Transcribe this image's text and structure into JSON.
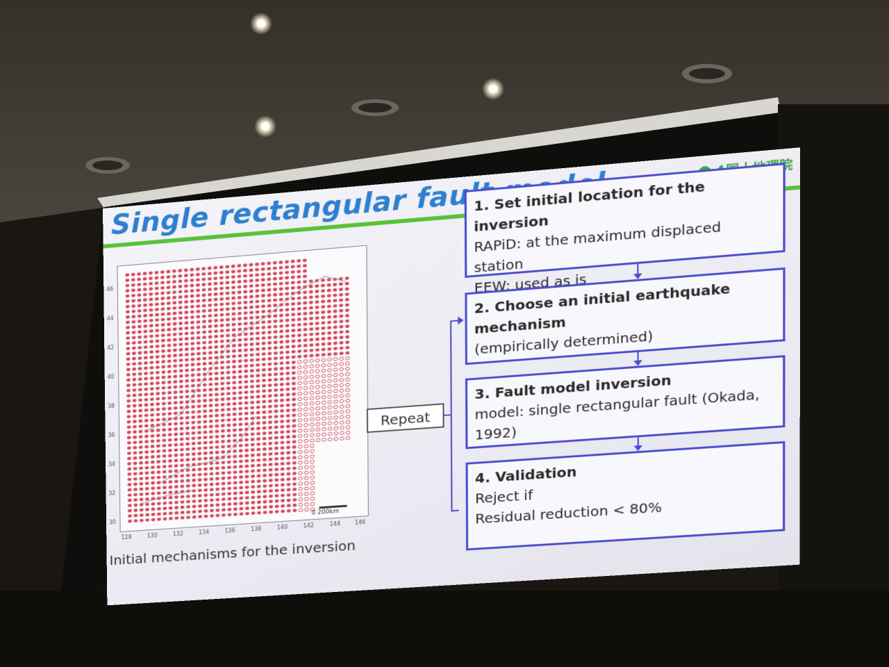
{
  "slide": {
    "title": "Single rectangular fault model",
    "logo": {
      "text": "国土地理院",
      "color": "#3ba54a"
    },
    "map": {
      "y_ticks": [
        "46",
        "44",
        "42",
        "40",
        "38",
        "36",
        "34",
        "32",
        "30"
      ],
      "x_ticks": [
        "128",
        "130",
        "132",
        "134",
        "136",
        "138",
        "140",
        "142",
        "144",
        "146"
      ],
      "scale_label": "0    200km",
      "dot_color": "#d24a5c"
    },
    "caption": "Initial mechanisms for the inversion",
    "repeat_label": "Repeat",
    "steps": [
      {
        "heading": "1. Set initial location for the inversion",
        "lines": [
          "RAPiD: at the maximum displaced station",
          "EEW: used as is"
        ]
      },
      {
        "heading": "2. Choose an initial earthquake mechanism",
        "lines": [
          "(empirically determined)"
        ]
      },
      {
        "heading": "3. Fault model inversion",
        "lines": [
          "model: single rectangular fault (Okada, 1992)"
        ]
      },
      {
        "heading": "4. Validation",
        "lines": [
          "Reject if",
          "Residual reduction < 80%"
        ]
      }
    ],
    "colors": {
      "title": "#2f7fd0",
      "accent_bar": "#58c23a",
      "box_border": "#4c4ccf"
    }
  }
}
